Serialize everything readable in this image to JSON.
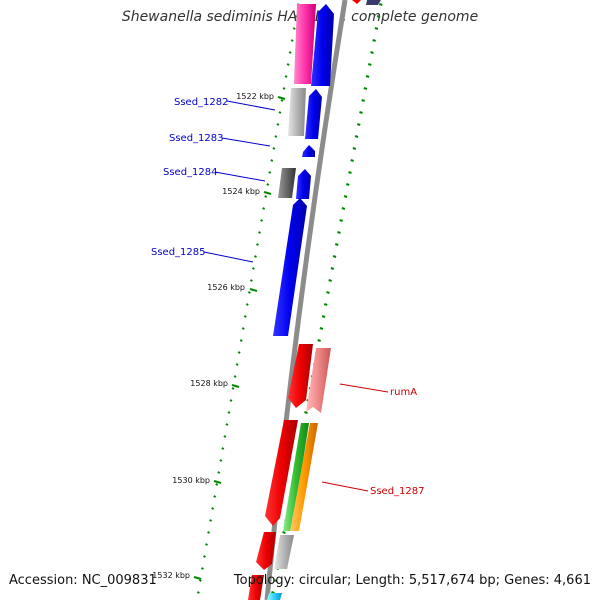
{
  "map": {
    "title": "Shewanella sediminis HAW-EB3, complete genome",
    "accession_label": "Accession: NC_009831",
    "topology_label": "Topology: circular; Length: 5,517,674 bp; Genes: 4,661"
  },
  "scale": {
    "ticks": [
      {
        "label": "1522 kbp"
      },
      {
        "label": "1524 kbp"
      },
      {
        "label": "1526 kbp"
      },
      {
        "label": "1528 kbp"
      },
      {
        "label": "1530 kbp"
      },
      {
        "label": "1532 kbp"
      }
    ]
  },
  "genes": [
    {
      "label": "Ssed_1282",
      "strand": "forward",
      "color": "#0000cc"
    },
    {
      "label": "Ssed_1283",
      "strand": "forward",
      "color": "#0000cc"
    },
    {
      "label": "Ssed_1284",
      "strand": "forward",
      "color": "#0000cc"
    },
    {
      "label": "Ssed_1285",
      "strand": "forward",
      "color": "#0000cc"
    },
    {
      "label": "rumA",
      "strand": "reverse",
      "color": "#cc0000"
    },
    {
      "label": "Ssed_1287",
      "strand": "reverse",
      "color": "#cc0000"
    }
  ],
  "colors": {
    "backbone": "#888888",
    "cds_forward": "#0000ee",
    "cds_reverse": "#ee0000",
    "gc_skew": "#008800"
  }
}
